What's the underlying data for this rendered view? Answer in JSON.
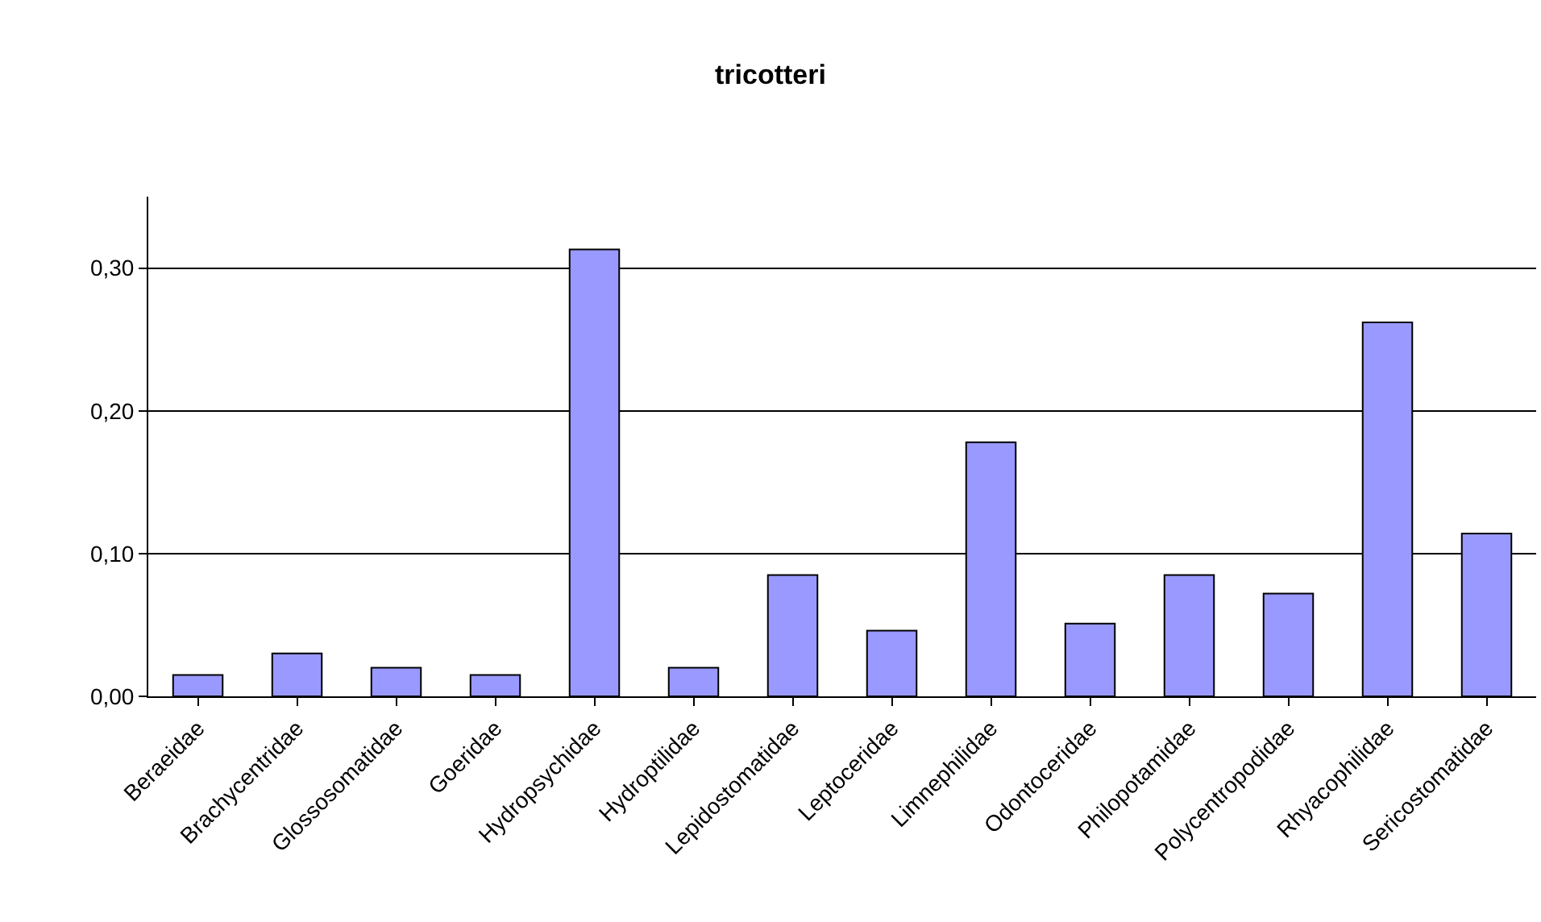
{
  "chart_data": {
    "type": "bar",
    "title": "tricotteri",
    "categories": [
      "Beraeidae",
      "Brachycentridae",
      "Glossosomatidae",
      "Goeridae",
      "Hydropsychidae",
      "Hydroptilidae",
      "Lepidostomatidae",
      "Leptoceridae",
      "Limnephilidae",
      "Odontoceridae",
      "Philopotamidae",
      "Polycentropodidae",
      "Rhyacophilidae",
      "Sericostomatidae"
    ],
    "values": [
      0.015,
      0.03,
      0.02,
      0.015,
      0.313,
      0.02,
      0.085,
      0.046,
      0.178,
      0.051,
      0.085,
      0.072,
      0.262,
      0.114
    ],
    "color": "#9999ff",
    "ylim": [
      0,
      0.35
    ],
    "yticks": [
      {
        "value": 0,
        "label": "0,00"
      },
      {
        "value": 0.1,
        "label": "0,10"
      },
      {
        "value": 0.2,
        "label": "0,20"
      },
      {
        "value": 0.3,
        "label": "0,30"
      }
    ],
    "grid": "y",
    "legend": false
  }
}
